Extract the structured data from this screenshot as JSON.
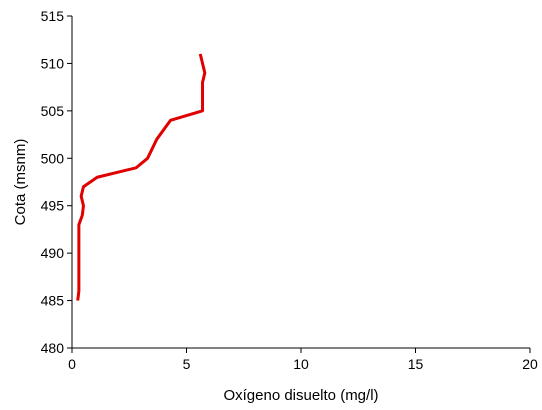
{
  "chart_data": {
    "type": "line",
    "xlabel": "Oxígeno disuelto (mg/l)",
    "ylabel": "Cota (msnm)",
    "xlim": [
      0,
      20
    ],
    "ylim": [
      480,
      515
    ],
    "x_ticks": [
      "0",
      "5",
      "10",
      "15",
      "20"
    ],
    "y_ticks": [
      "480",
      "485",
      "490",
      "495",
      "500",
      "505",
      "510",
      "515"
    ],
    "grid": false,
    "legend": "none",
    "series": [
      {
        "color": "#e00000",
        "points": [
          {
            "x": 0.25,
            "y": 485
          },
          {
            "x": 0.3,
            "y": 486
          },
          {
            "x": 0.3,
            "y": 487
          },
          {
            "x": 0.3,
            "y": 490
          },
          {
            "x": 0.3,
            "y": 493
          },
          {
            "x": 0.45,
            "y": 494
          },
          {
            "x": 0.5,
            "y": 495
          },
          {
            "x": 0.4,
            "y": 496
          },
          {
            "x": 0.5,
            "y": 497
          },
          {
            "x": 1.1,
            "y": 498
          },
          {
            "x": 2.8,
            "y": 499
          },
          {
            "x": 3.3,
            "y": 500
          },
          {
            "x": 3.7,
            "y": 502
          },
          {
            "x": 4.3,
            "y": 504
          },
          {
            "x": 5.7,
            "y": 505
          },
          {
            "x": 5.7,
            "y": 507
          },
          {
            "x": 5.7,
            "y": 508
          },
          {
            "x": 5.8,
            "y": 509
          },
          {
            "x": 5.6,
            "y": 511
          }
        ]
      }
    ]
  }
}
